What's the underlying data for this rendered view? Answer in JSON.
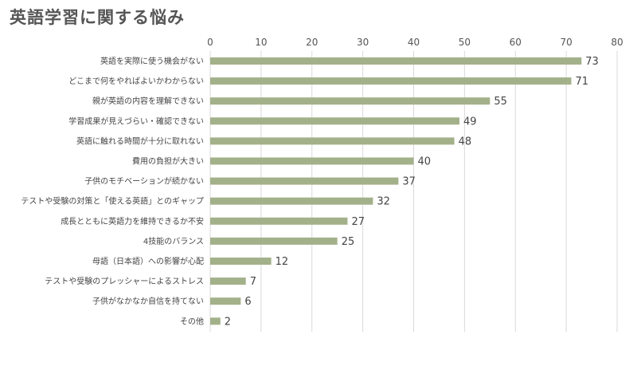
{
  "chart_data": {
    "type": "bar",
    "orientation": "horizontal",
    "title": "英語学習に関する悩み",
    "xlim": [
      0,
      80
    ],
    "xticks": [
      0,
      10,
      20,
      30,
      40,
      50,
      60,
      70,
      80
    ],
    "grid": true,
    "bar_color": "#a3b18a",
    "categories": [
      "英語を実際に使う機会がない",
      "どこまで何をやればよいかわからない",
      "親が英語の内容を理解できない",
      "学習成果が見えづらい・確認できない",
      "英語に触れる時間が十分に取れない",
      "費用の負担が大きい",
      "子供のモチベーションが続かない",
      "テストや受験の対策と「使える英語」とのギャップ",
      "成長とともに英語力を維持できるか不安",
      "4技能のバランス",
      "母語（日本語）への影響が心配",
      "テストや受験のプレッシャーによるストレス",
      "子供がなかなか自信を持てない",
      "その他"
    ],
    "values": [
      73,
      71,
      55,
      49,
      48,
      40,
      37,
      32,
      27,
      25,
      12,
      7,
      6,
      2
    ]
  }
}
